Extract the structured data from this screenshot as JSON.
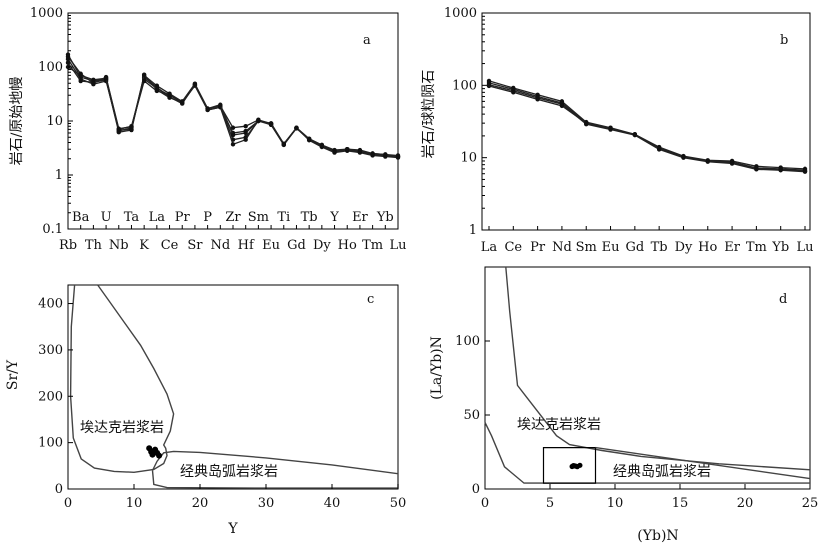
{
  "chart_data": [
    {
      "panel": "a",
      "type": "line",
      "ylabel": "岩石/原始地幔",
      "yscale": "log",
      "ylim": [
        0.1,
        1000
      ],
      "y_ticks": [
        "0.1",
        "1",
        "10",
        "100",
        "1000"
      ],
      "x_bottom_labels": [
        "Rb",
        "Th",
        "Nb",
        "K",
        "Ce",
        "Sr",
        "Nd",
        "Hf",
        "Eu",
        "Gd",
        "Dy",
        "Ho",
        "Tm",
        "Lu"
      ],
      "x_top_labels": [
        "Ba",
        "U",
        "Ta",
        "La",
        "Pr",
        "P",
        "Zr",
        "Sm",
        "Ti",
        "Tb",
        "Y",
        "Er",
        "Yb"
      ],
      "categories": [
        "Rb",
        "Ba",
        "Th",
        "U",
        "Nb",
        "Ta",
        "K",
        "La",
        "Ce",
        "Pr",
        "Sr",
        "P",
        "Nd",
        "Zr",
        "Hf",
        "Sm",
        "Eu",
        "Ti",
        "Gd",
        "Tb",
        "Dy",
        "Y",
        "Ho",
        "Er",
        "Tm",
        "Yb",
        "Lu"
      ],
      "series": [
        {
          "values": [
            170,
            65,
            55,
            60,
            6.5,
            7.5,
            70,
            45,
            32,
            23,
            48,
            17,
            19,
            7.5,
            8.0,
            10.5,
            9.0,
            3.7,
            7.5,
            4.7,
            3.6,
            2.8,
            3.0,
            2.9,
            2.5,
            2.4,
            2.3
          ]
        },
        {
          "values": [
            155,
            75,
            50,
            65,
            7.0,
            8.0,
            60,
            40,
            30,
            22,
            45,
            16,
            18,
            6.0,
            6.5,
            10.0,
            9.0,
            3.7,
            7.3,
            4.5,
            3.4,
            2.7,
            2.9,
            2.7,
            2.4,
            2.3,
            2.2
          ]
        },
        {
          "values": [
            140,
            60,
            48,
            55,
            6.8,
            7.0,
            65,
            42,
            28,
            21,
            47,
            17,
            19,
            4.5,
            5.0,
            10.0,
            8.5,
            3.6,
            7.4,
            4.6,
            3.5,
            2.8,
            3.0,
            2.8,
            2.4,
            2.3,
            2.2
          ]
        },
        {
          "values": [
            120,
            55,
            52,
            58,
            6.2,
            6.8,
            72,
            38,
            27,
            22,
            46,
            16,
            18,
            3.7,
            4.5,
            10.5,
            8.5,
            3.7,
            7.5,
            4.4,
            3.3,
            2.6,
            2.8,
            2.6,
            2.3,
            2.2,
            2.1
          ]
        },
        {
          "values": [
            100,
            70,
            58,
            62,
            7.2,
            7.8,
            55,
            36,
            31,
            23,
            49,
            17,
            20,
            5.5,
            6.0,
            10.0,
            9.0,
            3.8,
            7.4,
            4.6,
            3.6,
            2.9,
            3.0,
            2.8,
            2.5,
            2.4,
            2.2
          ]
        }
      ]
    },
    {
      "panel": "b",
      "type": "line",
      "ylabel": "岩石/球粒陨石",
      "yscale": "log",
      "ylim": [
        1,
        1000
      ],
      "y_ticks": [
        "1",
        "10",
        "100",
        "1000"
      ],
      "categories": [
        "La",
        "Ce",
        "Pr",
        "Nd",
        "Sm",
        "Eu",
        "Gd",
        "Tb",
        "Dy",
        "Ho",
        "Er",
        "Tm",
        "Yb",
        "Lu"
      ],
      "series": [
        {
          "values": [
            115,
            92,
            74,
            60,
            31,
            26,
            21,
            14,
            10.5,
            9.2,
            9.0,
            7.6,
            7.3,
            7.0
          ]
        },
        {
          "values": [
            108,
            88,
            70,
            57,
            30,
            25,
            21,
            13.5,
            10.2,
            9.0,
            8.7,
            7.2,
            7.0,
            6.7
          ]
        },
        {
          "values": [
            102,
            84,
            67,
            55,
            29,
            24.5,
            20.5,
            13,
            10,
            8.8,
            8.3,
            6.9,
            6.7,
            6.4
          ]
        },
        {
          "values": [
            98,
            80,
            64,
            52,
            30,
            25,
            21,
            13.2,
            10.3,
            9.0,
            8.5,
            7.0,
            6.8,
            6.5
          ]
        }
      ]
    },
    {
      "panel": "c",
      "type": "scatter",
      "xlabel": "Y",
      "ylabel": "Sr/Y",
      "xlim": [
        0,
        50
      ],
      "ylim": [
        0,
        440
      ],
      "x_ticks": [
        "0",
        "10",
        "20",
        "30",
        "40",
        "50"
      ],
      "y_ticks": [
        "0",
        "100",
        "200",
        "300",
        "400"
      ],
      "field_labels": [
        "埃达克岩浆岩",
        "经典岛弧岩浆岩"
      ],
      "points": [
        [
          12.3,
          88
        ],
        [
          12.6,
          80
        ],
        [
          13.0,
          82
        ],
        [
          12.8,
          74
        ],
        [
          13.5,
          78
        ],
        [
          13.2,
          85
        ],
        [
          13.8,
          72
        ]
      ],
      "adakite_field": [
        [
          1.0,
          440
        ],
        [
          0.5,
          350
        ],
        [
          0.4,
          200
        ],
        [
          0.8,
          110
        ],
        [
          2,
          65
        ],
        [
          4,
          45
        ],
        [
          7,
          38
        ],
        [
          10,
          36
        ],
        [
          13,
          42
        ],
        [
          14.5,
          55
        ],
        [
          15,
          72
        ],
        [
          14.8,
          88
        ],
        [
          14.5,
          95
        ],
        [
          15.5,
          125
        ],
        [
          16,
          162
        ],
        [
          15,
          205
        ],
        [
          13,
          260
        ],
        [
          11,
          310
        ],
        [
          8.5,
          360
        ],
        [
          6,
          410
        ],
        [
          4.5,
          440
        ]
      ],
      "arc_field": [
        [
          12.8,
          40
        ],
        [
          13.5,
          60
        ],
        [
          14.5,
          78
        ],
        [
          16,
          81
        ],
        [
          20,
          79
        ],
        [
          30,
          67
        ],
        [
          40,
          52
        ],
        [
          50,
          33
        ],
        [
          50,
          2
        ],
        [
          30,
          2
        ],
        [
          15,
          3
        ],
        [
          13,
          10
        ],
        [
          12.8,
          40
        ]
      ]
    },
    {
      "panel": "d",
      "type": "scatter",
      "xlabel": "(Yb)N",
      "ylabel": "(La/Yb)N",
      "xlim": [
        0,
        25
      ],
      "ylim": [
        0,
        150
      ],
      "x_ticks": [
        "0",
        "5",
        "10",
        "15",
        "20",
        "25"
      ],
      "y_ticks": [
        "0",
        "50",
        "100"
      ],
      "field_labels": [
        "埃达克岩浆岩",
        "经典岛弧岩浆岩"
      ],
      "points": [
        [
          6.7,
          15.2
        ],
        [
          6.9,
          15.6
        ],
        [
          7.1,
          15.1
        ],
        [
          7.3,
          16.0
        ],
        [
          6.8,
          15.8
        ],
        [
          7.0,
          15.4
        ]
      ],
      "adakite_field": [
        [
          1.6,
          150
        ],
        [
          1.9,
          120
        ],
        [
          2.5,
          70
        ],
        [
          3.2,
          62
        ],
        [
          4,
          53
        ],
        [
          4.8,
          44
        ],
        [
          5.5,
          36
        ],
        [
          6.5,
          30
        ],
        [
          9,
          26
        ],
        [
          12,
          22
        ],
        [
          18,
          17
        ],
        [
          25,
          13
        ],
        [
          25,
          4
        ],
        [
          15,
          4
        ],
        [
          8,
          4
        ],
        [
          5,
          4
        ],
        [
          3,
          4
        ],
        [
          1.5,
          15
        ],
        [
          0.5,
          36
        ],
        [
          0,
          45
        ]
      ],
      "arc_box": [
        [
          4.5,
          4
        ],
        [
          8.5,
          4
        ],
        [
          8.5,
          28
        ],
        [
          4.5,
          28
        ]
      ],
      "arc_tail": [
        [
          8.5,
          28
        ],
        [
          25,
          7
        ]
      ]
    }
  ]
}
